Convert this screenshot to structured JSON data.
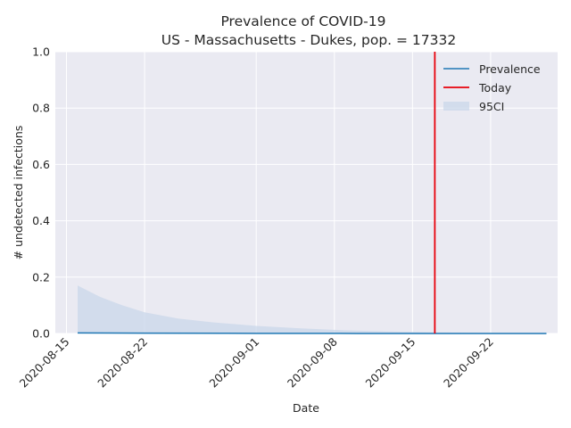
{
  "chart_data": {
    "type": "line",
    "title": "Prevalence of COVID-19",
    "subtitle": "US - Massachusetts - Dukes, pop. = 17332",
    "xlabel": "Date",
    "ylabel": "# undetected infections",
    "ylim": [
      0,
      1.0
    ],
    "xlim": [
      "2020-08-14",
      "2020-09-28"
    ],
    "yticks": [
      "0.0",
      "0.2",
      "0.4",
      "0.6",
      "0.8",
      "1.0"
    ],
    "xticks": [
      "2020-08-15",
      "2020-08-22",
      "2020-09-01",
      "2020-09-08",
      "2020-09-15",
      "2020-09-22"
    ],
    "grid": true,
    "legend_position": "top-right",
    "legend": [
      "Prevalence",
      "Today",
      "95CI"
    ],
    "today": "2020-09-17",
    "colors": {
      "prevalence": "#1f77b4",
      "today": "#e8000b",
      "ci": "#c9d7ea",
      "background": "#eaeaf2"
    },
    "series": [
      {
        "name": "Prevalence",
        "x": [
          "2020-08-16",
          "2020-08-22",
          "2020-09-01",
          "2020-09-10",
          "2020-09-20",
          "2020-09-27"
        ],
        "values": [
          0.002,
          0.001,
          0.0005,
          0.0002,
          0.0001,
          0.0
        ]
      },
      {
        "name": "95CI",
        "x": [
          "2020-08-16",
          "2020-08-18",
          "2020-08-20",
          "2020-08-22",
          "2020-08-25",
          "2020-08-28",
          "2020-09-01",
          "2020-09-05",
          "2020-09-09",
          "2020-09-13",
          "2020-09-17",
          "2020-09-21",
          "2020-09-25",
          "2020-09-27"
        ],
        "lower": [
          0,
          0,
          0,
          0,
          0,
          0,
          0,
          0,
          0,
          0,
          0,
          0,
          0,
          0
        ],
        "upper": [
          0.17,
          0.13,
          0.1,
          0.075,
          0.053,
          0.04,
          0.027,
          0.018,
          0.011,
          0.007,
          0.004,
          0.002,
          0.001,
          0.001
        ]
      }
    ]
  }
}
